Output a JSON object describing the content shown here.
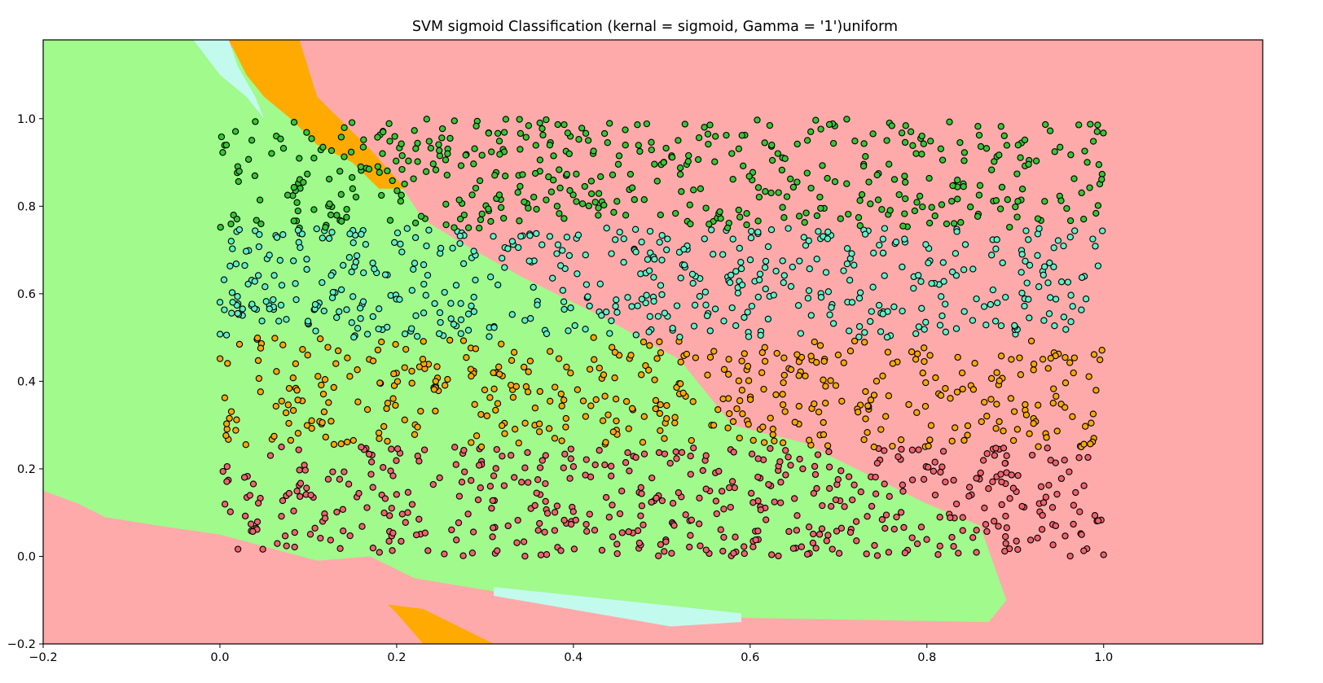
{
  "chart_data": {
    "type": "scatter",
    "title": "SVM sigmoid Classification (kernal = sigmoid, Gamma = '1')uniform",
    "xlabel": "",
    "ylabel": "",
    "xlim": [
      -0.2,
      1.18
    ],
    "ylim": [
      -0.2,
      1.18
    ],
    "x_ticks": [
      -0.2,
      0.0,
      0.2,
      0.4,
      0.6,
      0.8,
      1.0
    ],
    "x_tick_labels": [
      "−0.2",
      "0.0",
      "0.2",
      "0.4",
      "0.6",
      "0.8",
      "1.0"
    ],
    "y_ticks": [
      -0.2,
      0.0,
      0.2,
      0.4,
      0.6,
      0.8,
      1.0
    ],
    "y_tick_labels": [
      "−0.2",
      "0.0",
      "0.2",
      "0.4",
      "0.6",
      "0.8",
      "1.0"
    ],
    "grid": false,
    "legend": "none",
    "colors": {
      "region_red": "#ffaaaa",
      "region_green": "#a0fa8c",
      "region_cyan": "#c3faee",
      "region_orange": "#ffaa00",
      "point_red": "#f0636e",
      "point_orange": "#ffa800",
      "point_green": "#34c833",
      "point_cyan": "#5ff0c8",
      "edge": "#000000"
    },
    "point_sampling": "uniform random in [0,1] x [0,1], classes by y band (0–0.25 red, 0.25–0.5 orange, 0.5–0.75 cyan, 0.75–1.0 green)",
    "point_count": 2000,
    "decision_regions": [
      {
        "class": "red",
        "polygon": [
          [
            -0.2,
            -0.2
          ],
          [
            1.18,
            -0.2
          ],
          [
            1.18,
            1.18
          ],
          [
            -0.2,
            1.18
          ]
        ]
      },
      {
        "class": "green",
        "polygon": [
          [
            -0.2,
            1.18
          ],
          [
            0.0,
            1.18
          ],
          [
            0.06,
            1.1
          ],
          [
            0.12,
            1.0
          ],
          [
            0.16,
            0.9
          ],
          [
            0.2,
            0.86
          ],
          [
            0.23,
            0.77
          ],
          [
            0.27,
            0.72
          ],
          [
            0.34,
            0.64
          ],
          [
            0.43,
            0.55
          ],
          [
            0.52,
            0.45
          ],
          [
            0.58,
            0.3
          ],
          [
            0.66,
            0.26
          ],
          [
            0.72,
            0.2
          ],
          [
            0.8,
            0.12
          ],
          [
            0.86,
            0.07
          ],
          [
            0.89,
            -0.1
          ],
          [
            0.87,
            -0.15
          ],
          [
            0.58,
            -0.14
          ],
          [
            0.44,
            -0.12
          ],
          [
            0.31,
            -0.08
          ],
          [
            0.22,
            -0.05
          ],
          [
            0.17,
            0.0
          ],
          [
            0.11,
            -0.01
          ],
          [
            0.0,
            0.05
          ],
          [
            -0.07,
            0.07
          ],
          [
            -0.13,
            0.09
          ],
          [
            -0.16,
            0.12
          ],
          [
            -0.2,
            0.15
          ]
        ]
      },
      {
        "class": "cyan",
        "polygon": [
          [
            -0.03,
            1.18
          ],
          [
            0.01,
            1.18
          ],
          [
            0.02,
            1.12
          ],
          [
            0.04,
            1.05
          ],
          [
            0.05,
            1.0
          ],
          [
            0.03,
            1.05
          ],
          [
            0.0,
            1.1
          ]
        ]
      },
      {
        "class": "cyan",
        "polygon": [
          [
            0.31,
            -0.07
          ],
          [
            0.59,
            -0.13
          ],
          [
            0.59,
            -0.15
          ],
          [
            0.51,
            -0.16
          ],
          [
            0.31,
            -0.09
          ]
        ]
      },
      {
        "class": "orange",
        "polygon": [
          [
            0.01,
            1.18
          ],
          [
            0.09,
            1.18
          ],
          [
            0.11,
            1.05
          ],
          [
            0.17,
            0.93
          ],
          [
            0.21,
            0.84
          ],
          [
            0.18,
            0.84
          ],
          [
            0.15,
            0.9
          ],
          [
            0.11,
            0.94
          ],
          [
            0.08,
            1.0
          ],
          [
            0.05,
            1.05
          ],
          [
            0.03,
            1.1
          ]
        ]
      },
      {
        "class": "orange",
        "polygon": [
          [
            0.19,
            -0.11
          ],
          [
            0.23,
            -0.12
          ],
          [
            0.28,
            -0.17
          ],
          [
            0.31,
            -0.2
          ],
          [
            0.23,
            -0.2
          ],
          [
            0.2,
            -0.13
          ]
        ]
      }
    ]
  }
}
